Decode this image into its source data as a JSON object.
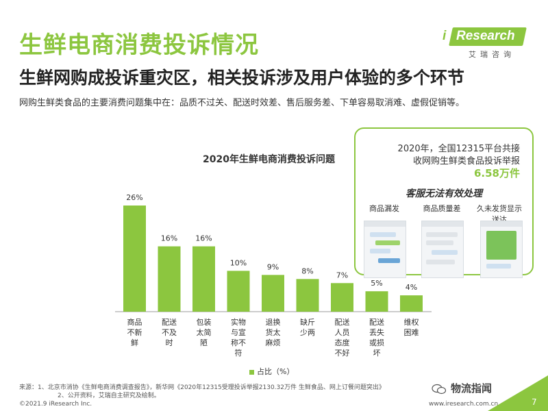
{
  "header": {
    "title": "生鲜电商消费投诉情况",
    "subtitle": "生鲜网购成投诉重灾区，相关投诉涉及用户体验的多个环节",
    "description": "网购生鲜类食品的主要消费问题集中在：品质不过关、配送时效差、售后服务差、下单容易取消难、虚假促销等。"
  },
  "logo": {
    "i": "i",
    "name": "Research",
    "cn": "艾瑞咨询"
  },
  "chart_data": {
    "type": "bar",
    "title": "2020年生鲜电商消费投诉问题",
    "categories": [
      "商品不新鲜",
      "配送不及时",
      "包装太简陋",
      "实物与宣称不符",
      "退换货太麻烦",
      "缺斤少两",
      "配送人员态度不好",
      "配送丢失或损坏",
      "维权困难"
    ],
    "category_lines": [
      [
        "商品",
        "不新",
        "鲜"
      ],
      [
        "配送",
        "不及",
        "时"
      ],
      [
        "包装",
        "太简",
        "陋"
      ],
      [
        "实物",
        "与宣",
        "称不",
        "符"
      ],
      [
        "退换",
        "货太",
        "麻烦"
      ],
      [
        "缺斤",
        "少两"
      ],
      [
        "配送",
        "人员",
        "态度",
        "不好"
      ],
      [
        "配送",
        "丢失",
        "或损",
        "坏"
      ],
      [
        "维权",
        "困难"
      ]
    ],
    "series": [
      {
        "name": "占比（%）",
        "values": [
          26,
          16,
          16,
          10,
          9,
          8,
          7,
          5,
          4
        ]
      }
    ],
    "data_labels": [
      "26%",
      "16%",
      "16%",
      "10%",
      "9%",
      "8%",
      "7%",
      "5%",
      "4%"
    ],
    "ylim": [
      0,
      30
    ],
    "grid": false,
    "legend": "bottom",
    "color": "#8cc63f"
  },
  "callout": {
    "line1": "2020年，全国12315平台共接",
    "line2": "收网购生鲜类食品投诉举报",
    "highlight": "6.58万件",
    "emphasis": "客服无法有效处理",
    "screenshots": [
      {
        "label": "商品漏发"
      },
      {
        "label": "商品质量差"
      },
      {
        "label": "久未发货显示",
        "label2": "送达"
      }
    ]
  },
  "footer": {
    "source_line1": "来源：1、北京市消协《生鲜电商消费调查报告》，新华网《2020年12315受理投诉举报2130.32万件 生鲜食品、网上订餐问题突出》",
    "source_line2": "2、公开资料，艾瑞自主研究及绘制。",
    "copyright": "©2021.9 iResearch Inc.",
    "website": "www.iresearch.com.cn",
    "wechat": "物流指闻",
    "page": "7"
  },
  "colors": {
    "accent": "#8cc63f",
    "text": "#333333"
  }
}
